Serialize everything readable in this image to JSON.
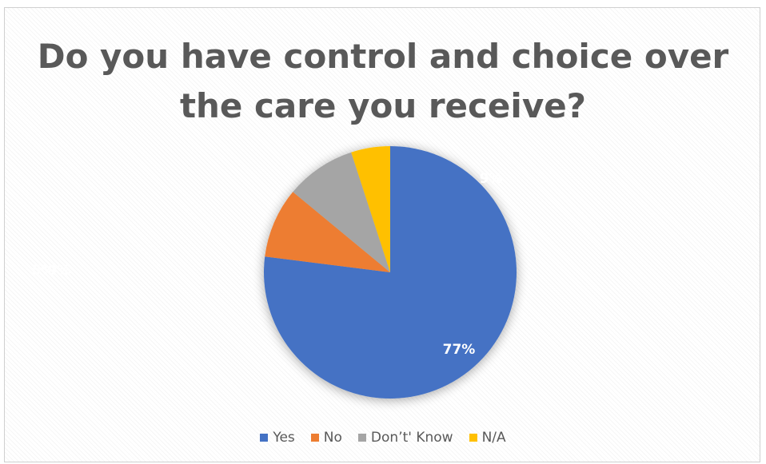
{
  "chart_data": {
    "type": "pie",
    "title_lines": [
      "Do you have control and choice over",
      "the care you receive?"
    ],
    "categories": [
      "Yes",
      "No",
      "Don’t' Know",
      "N/A"
    ],
    "values": [
      77,
      9,
      9,
      5
    ],
    "colors": [
      "#4472C4",
      "#ED7D31",
      "#A5A5A5",
      "#FFC000"
    ],
    "data_labels": [
      "77%",
      "9%",
      "9%",
      "5%"
    ],
    "legend_position": "bottom"
  }
}
